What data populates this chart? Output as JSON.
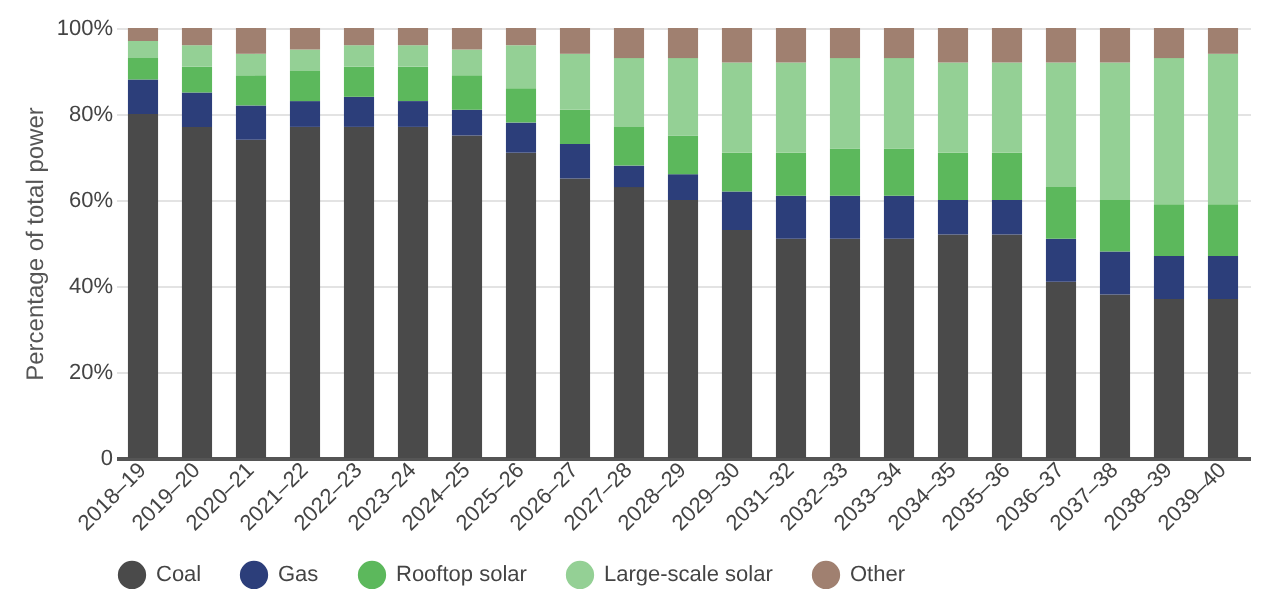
{
  "chart_data": {
    "type": "bar",
    "stacked": true,
    "ylabel": "Percentage of total power",
    "categories": [
      "2018–19",
      "2019–20",
      "2020–21",
      "2021–22",
      "2022–23",
      "2023–24",
      "2024–25",
      "2025–26",
      "2026–27",
      "2027–28",
      "2028–29",
      "2029–30",
      "2031–32",
      "2032–33",
      "2033–34",
      "2034–35",
      "2035–36",
      "2036–37",
      "2037–38",
      "2038–39",
      "2039–40"
    ],
    "series": [
      {
        "name": "Coal",
        "color": "#4a4a4a",
        "values": [
          80,
          77,
          74,
          77,
          77,
          77,
          75,
          71,
          65,
          63,
          60,
          53,
          51,
          51,
          51,
          52,
          52,
          41,
          38,
          37,
          37
        ]
      },
      {
        "name": "Gas",
        "color": "#2c3e7a",
        "values": [
          8,
          8,
          8,
          6,
          7,
          6,
          6,
          7,
          8,
          5,
          6,
          9,
          10,
          10,
          10,
          8,
          8,
          10,
          10,
          10,
          10
        ]
      },
      {
        "name": "Rooftop solar",
        "color": "#5cb85c",
        "values": [
          5,
          6,
          7,
          7,
          7,
          8,
          8,
          8,
          8,
          9,
          9,
          9,
          10,
          11,
          11,
          11,
          11,
          12,
          12,
          12,
          12
        ]
      },
      {
        "name": "Large-scale solar",
        "color": "#94d095",
        "values": [
          4,
          5,
          5,
          5,
          5,
          5,
          6,
          10,
          13,
          16,
          18,
          21,
          21,
          21,
          21,
          21,
          21,
          29,
          32,
          34,
          35
        ]
      },
      {
        "name": "Other",
        "color": "#a08070",
        "values": [
          3,
          4,
          6,
          5,
          4,
          4,
          5,
          4,
          6,
          7,
          7,
          8,
          8,
          7,
          7,
          8,
          8,
          8,
          8,
          7,
          6
        ]
      }
    ],
    "ylim": [
      0,
      100
    ],
    "yticks": [
      0,
      {
        "value": 20,
        "label": "20%"
      },
      {
        "value": 40,
        "label": "40%"
      },
      {
        "value": 60,
        "label": "60%"
      },
      {
        "value": 80,
        "label": "80%"
      },
      {
        "value": 100,
        "label": "100%"
      }
    ],
    "grid": "y",
    "legend": "bottom",
    "marker": "circle"
  }
}
